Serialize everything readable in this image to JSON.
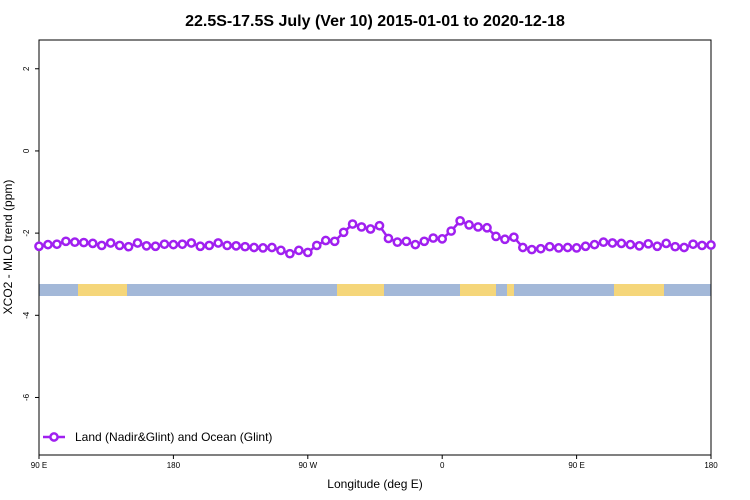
{
  "chart_data": {
    "type": "line",
    "title": "22.5S-17.5S July (Ver 10)   2015-01-01 to 2020-12-18",
    "x_label": "Longitude (deg E)",
    "y_label": "XCO2 - MLO trend (ppm)",
    "x": [
      90,
      96,
      102,
      108,
      114,
      120,
      126,
      132,
      138,
      144,
      150,
      156,
      162,
      168,
      174,
      180,
      186,
      192,
      198,
      204,
      210,
      216,
      222,
      228,
      234,
      240,
      246,
      252,
      258,
      264,
      270,
      276,
      282,
      288,
      294,
      300,
      306,
      312,
      318,
      324,
      330,
      336,
      342,
      348,
      354,
      360,
      366,
      372,
      378,
      384,
      390,
      396,
      402,
      408,
      414,
      420,
      426,
      432,
      438,
      444,
      450,
      456,
      462,
      468,
      474,
      480,
      486,
      492,
      498,
      504,
      510,
      516,
      522,
      528,
      534,
      540
    ],
    "series": [
      {
        "name": "Land (Nadir&Glint) and Ocean (Glint)",
        "color": "#a020f0",
        "values": [
          -2.32,
          -2.28,
          -2.27,
          -2.2,
          -2.22,
          -2.23,
          -2.25,
          -2.3,
          -2.24,
          -2.3,
          -2.33,
          -2.24,
          -2.31,
          -2.32,
          -2.27,
          -2.28,
          -2.27,
          -2.24,
          -2.32,
          -2.3,
          -2.24,
          -2.3,
          -2.31,
          -2.33,
          -2.35,
          -2.36,
          -2.35,
          -2.42,
          -2.5,
          -2.42,
          -2.47,
          -2.3,
          -2.18,
          -2.2,
          -1.98,
          -1.78,
          -1.85,
          -1.9,
          -1.82,
          -2.13,
          -2.22,
          -2.2,
          -2.28,
          -2.2,
          -2.12,
          -2.14,
          -1.95,
          -1.7,
          -1.8,
          -1.85,
          -1.87,
          -2.08,
          -2.15,
          -2.1,
          -2.35,
          -2.4,
          -2.38,
          -2.33,
          -2.36,
          -2.35,
          -2.36,
          -2.32,
          -2.28,
          -2.22,
          -2.24,
          -2.25,
          -2.28,
          -2.31,
          -2.26,
          -2.32,
          -2.25,
          -2.33,
          -2.35,
          -2.27,
          -2.3,
          -2.29
        ]
      }
    ],
    "xlim": [
      90,
      540
    ],
    "xticks": [
      {
        "value": 90,
        "label": "90 E"
      },
      180,
      {
        "value": 270,
        "label": "90 W"
      },
      {
        "value": 360,
        "label": "0"
      },
      {
        "value": 450,
        "label": "90 E"
      },
      {
        "value": 540,
        "label": "180"
      }
    ],
    "ylim": [
      -7.4,
      2.7
    ],
    "yticks": [
      2,
      0,
      -2,
      -4,
      -6
    ],
    "legend": "bottom-left"
  }
}
